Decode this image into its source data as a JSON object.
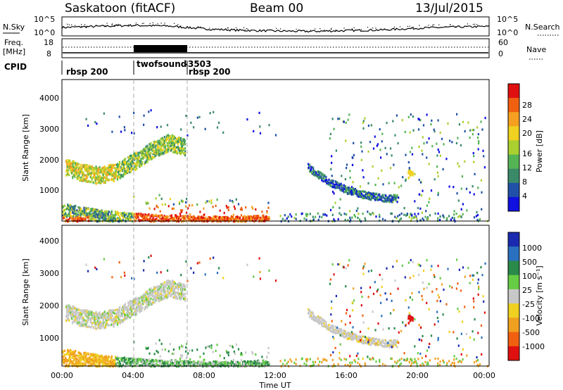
{
  "header": {
    "station": "Saskatoon (fitACF)",
    "beam": "Beam 00",
    "date": "13/Jul/2015"
  },
  "noise_panel": {
    "left_label": "N.Sky",
    "right_label": "N.Search",
    "left_ticks": [
      "10^5",
      "10^0"
    ],
    "right_ticks": [
      "10^5",
      "10^0"
    ]
  },
  "freq_panel": {
    "left_label_1": "Freq.",
    "left_label_2": "[MHz]",
    "right_label": "Nave",
    "left_ticks": [
      "18",
      "8"
    ],
    "right_ticks": [
      "60",
      "0"
    ]
  },
  "cpid_panel": {
    "label": "CPID",
    "segments": [
      {
        "start_hour": 0.0,
        "name": "rbsp 200"
      },
      {
        "start_hour": 4.0,
        "name": "twofsound",
        "id": "-3503"
      },
      {
        "start_hour": 7.0,
        "name": "rbsp 200"
      }
    ]
  },
  "x_axis": {
    "label": "Time UT",
    "ticks": [
      "00:00",
      "04:00",
      "08:00",
      "12:00",
      "16:00",
      "20:00",
      "00:00"
    ],
    "range_hours": [
      0,
      24
    ]
  },
  "power_panel": {
    "ylabel": "Slant Range [km]",
    "yticks": [
      "1000",
      "2000",
      "3000",
      "4000"
    ],
    "colorbar_label": "Power [dB]",
    "colorbar_ticks": [
      "4",
      "8",
      "12",
      "16",
      "20",
      "24",
      "28"
    ],
    "colors": [
      "#1010e0",
      "#2050a8",
      "#3a8a6a",
      "#54b454",
      "#aad030",
      "#f0d020",
      "#f5a020",
      "#f06010",
      "#e01010"
    ]
  },
  "velocity_panel": {
    "ylabel": "Slant Range [km]",
    "yticks": [
      "1000",
      "2000",
      "3000",
      "4000"
    ],
    "colorbar_label": "Velocity [m s⁻¹]",
    "colorbar_ticks": [
      "1000",
      "500",
      "100",
      "25",
      "-25",
      "-100",
      "-500",
      "-1000"
    ],
    "colors": [
      "#1a2ab0",
      "#2a70c0",
      "#2a8a4a",
      "#66cc44",
      "#c8c8c8",
      "#f0d020",
      "#f0a020",
      "#f06010",
      "#e01010"
    ]
  },
  "chart_data": [
    {
      "type": "line",
      "title": "Saskatoon (fitACF)",
      "series": [
        {
          "name": "N.Sky",
          "x_hours": [
            0,
            2,
            4,
            6,
            8,
            10,
            12,
            14,
            16,
            18,
            20,
            22,
            24
          ],
          "log10_values": [
            2.2,
            2.5,
            2.8,
            2.6,
            1.8,
            1.4,
            1.2,
            1.1,
            1.3,
            1.5,
            2.0,
            2.3,
            2.5
          ]
        }
      ],
      "ylim": [
        0,
        5
      ]
    },
    {
      "type": "heatmap",
      "title": "Power [dB]",
      "xlabel": "Time UT",
      "ylabel": "Slant Range [km]",
      "xlim": [
        0,
        24
      ],
      "ylim": [
        180,
        4500
      ],
      "features": [
        {
          "name": "ionospheric arc",
          "x_hours": [
            0.2,
            1.0,
            2.0,
            3.0,
            4.0,
            5.0,
            6.0,
            6.9
          ],
          "range_km": [
            1750,
            1600,
            1500,
            1600,
            1900,
            2250,
            2500,
            2350
          ],
          "power_db": 14
        },
        {
          "name": "near-range ground scatter",
          "x_hours": [
            0,
            2,
            4,
            6,
            8,
            10,
            11.5
          ],
          "range_km": [
            700,
            500,
            400,
            350,
            300,
            300,
            350
          ],
          "power_db": 26
        },
        {
          "name": "evening arc",
          "x_hours": [
            13.8,
            15.0,
            16.0,
            17.0,
            18.0,
            18.8
          ],
          "range_km": [
            1850,
            1400,
            1150,
            1000,
            900,
            900
          ],
          "power_db": 10
        }
      ]
    },
    {
      "type": "heatmap",
      "title": "Velocity [m s⁻¹]",
      "xlabel": "Time UT",
      "ylabel": "Slant Range [km]",
      "xlim": [
        0,
        24
      ],
      "ylim": [
        180,
        4500
      ],
      "features": [
        {
          "name": "ionospheric arc",
          "x_hours": [
            0.2,
            1.0,
            2.0,
            3.0,
            4.0,
            5.0,
            6.0,
            6.9
          ],
          "range_km": [
            1750,
            1600,
            1500,
            1600,
            1900,
            2250,
            2500,
            2350
          ],
          "velocity_ms": 0
        },
        {
          "name": "near-range flows",
          "x_hours": [
            0,
            1,
            2,
            3
          ],
          "range_km": [
            650,
            600,
            500,
            450
          ],
          "velocity_ms": -150
        },
        {
          "name": "evening arc",
          "x_hours": [
            13.8,
            15.0,
            16.0,
            17.0,
            18.0,
            18.8
          ],
          "range_km": [
            1850,
            1400,
            1150,
            1000,
            900,
            900
          ],
          "velocity_ms": 0
        }
      ]
    }
  ]
}
